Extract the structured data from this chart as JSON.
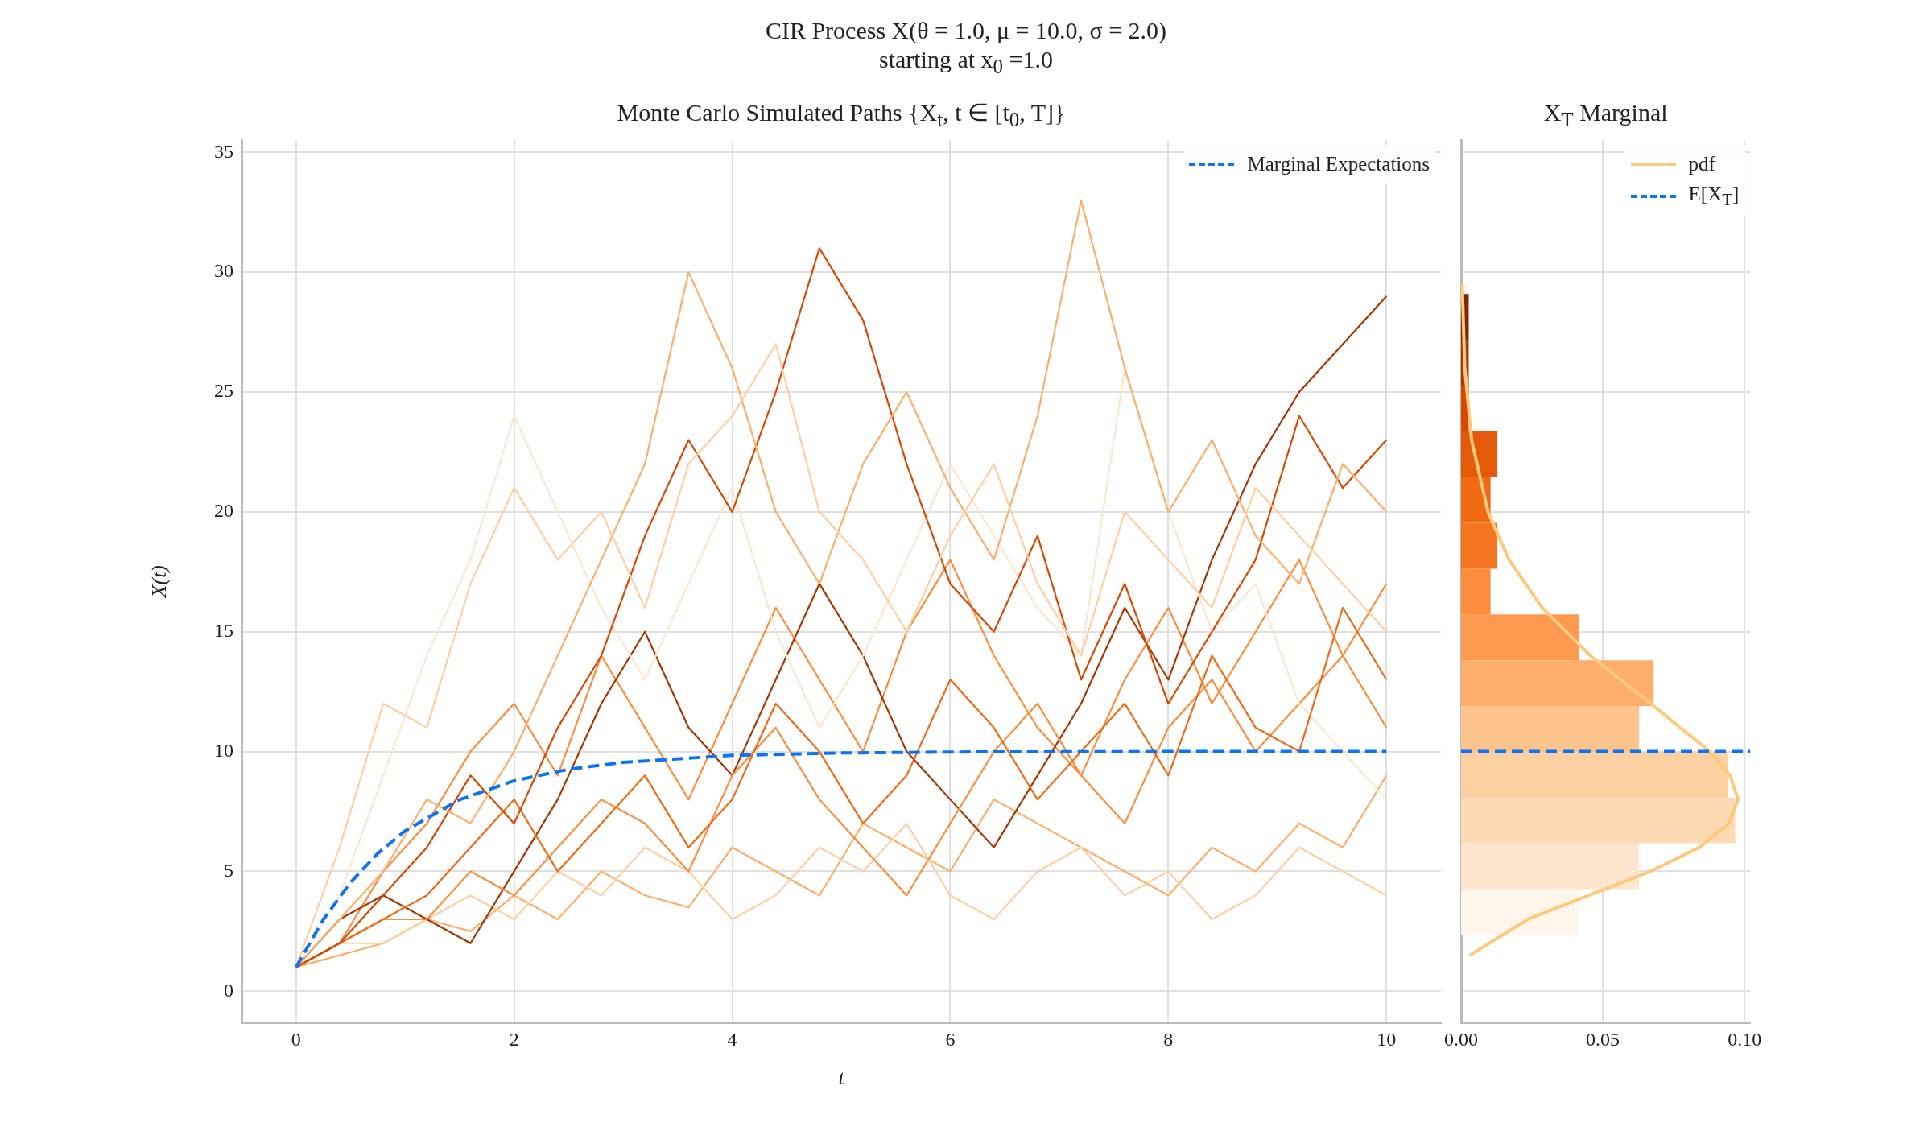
{
  "chart_data": [
    {
      "type": "line",
      "title": "CIR Process X(θ = 1.0, μ = 10.0, σ = 2.0)",
      "subtitle": "starting at x$_{0}$ =1.0",
      "annotations": [
        "Monte Carlo Simulated Paths {X$_{t}$, t ∈ [t$_{0}$, T]}"
      ],
      "xlabel": "t",
      "ylabel": "X(t)",
      "x": [
        0,
        0.4,
        0.8,
        1.2,
        1.6,
        2,
        2.4,
        2.8,
        3.2,
        3.6,
        4,
        4.4,
        4.8,
        5.2,
        5.6,
        6,
        6.4,
        6.8,
        7.2,
        7.6,
        8,
        8.4,
        8.8,
        9.2,
        9.6,
        10
      ],
      "series": [
        {
          "color": "#fdd0a2",
          "values": [
            1,
            6,
            12,
            11,
            17,
            21,
            18,
            20,
            16,
            22,
            24,
            27,
            20,
            18,
            15,
            19,
            22,
            17,
            14,
            20,
            18,
            16,
            21,
            19,
            17,
            15
          ]
        },
        {
          "color": "#fdae6b",
          "values": [
            1,
            3,
            5,
            8,
            7,
            10,
            14,
            18,
            22,
            30,
            26,
            20,
            17,
            22,
            25,
            21,
            18,
            24,
            33,
            26,
            20,
            23,
            19,
            17,
            22,
            20
          ]
        },
        {
          "color": "#d94801",
          "values": [
            1,
            2,
            4,
            6,
            9,
            7,
            11,
            14,
            19,
            23,
            20,
            25,
            31,
            28,
            22,
            17,
            15,
            19,
            13,
            17,
            12,
            15,
            18,
            24,
            21,
            23
          ]
        },
        {
          "color": "#f16913",
          "values": [
            1,
            2,
            3,
            4,
            6,
            8,
            5,
            7,
            9,
            6,
            8,
            12,
            10,
            7,
            9,
            13,
            11,
            8,
            10,
            12,
            9,
            14,
            11,
            10,
            16,
            13
          ]
        },
        {
          "color": "#fee6ce",
          "values": [
            1,
            4,
            9,
            14,
            18,
            24,
            20,
            16,
            13,
            17,
            21,
            15,
            11,
            14,
            18,
            22,
            19,
            16,
            14,
            26,
            20,
            15,
            17,
            12,
            10,
            8
          ]
        },
        {
          "color": "#fd8d3c",
          "values": [
            1,
            2,
            3,
            3,
            5,
            4,
            6,
            8,
            7,
            5,
            9,
            11,
            8,
            6,
            4,
            7,
            10,
            12,
            9,
            7,
            11,
            13,
            10,
            12,
            14,
            11
          ]
        },
        {
          "color": "#a63603",
          "values": [
            1,
            3,
            4,
            3,
            2,
            5,
            8,
            12,
            15,
            11,
            9,
            13,
            17,
            14,
            10,
            8,
            6,
            9,
            12,
            16,
            13,
            18,
            22,
            25,
            27,
            29
          ]
        },
        {
          "color": "#fdd0a2",
          "values": [
            1,
            2,
            2,
            3,
            4,
            3,
            5,
            4,
            6,
            5,
            3,
            4,
            6,
            5,
            7,
            4,
            3,
            5,
            6,
            4,
            5,
            3,
            4,
            6,
            5,
            4
          ]
        },
        {
          "color": "#fd8d3c",
          "values": [
            1,
            2,
            5,
            7,
            10,
            12,
            9,
            14,
            11,
            8,
            12,
            16,
            13,
            10,
            15,
            18,
            14,
            11,
            9,
            13,
            16,
            12,
            15,
            18,
            14,
            17
          ]
        },
        {
          "color": "#fdae6b",
          "values": [
            1,
            1.5,
            2,
            3,
            2.5,
            4,
            3,
            5,
            4,
            3.5,
            6,
            5,
            4,
            7,
            6,
            5,
            8,
            7,
            6,
            5,
            4,
            6,
            5,
            7,
            6,
            9
          ]
        },
        {
          "name": "Marginal Expectations",
          "color": "#0a74f5",
          "line_style": "dashed",
          "x": [
            0,
            0.25,
            0.5,
            0.75,
            1,
            1.5,
            2,
            2.5,
            3,
            4,
            5,
            6,
            8,
            10
          ],
          "values": [
            1,
            2.99,
            4.54,
            5.75,
            6.69,
            7.99,
            8.78,
            9.26,
            9.55,
            9.84,
            9.94,
            9.98,
            10,
            10
          ]
        }
      ],
      "xlim": [
        -0.5,
        10.5
      ],
      "xticks": [
        0,
        2,
        4,
        6,
        8,
        10
      ],
      "ylim": [
        -1.3,
        35.5
      ],
      "yticks": [
        0,
        5,
        10,
        15,
        20,
        25,
        30,
        35
      ],
      "grid": true,
      "legend": "top right",
      "marker": "none"
    },
    {
      "type": "histogram",
      "orientation": "horizontal",
      "title": "X$_{T}$ Marginal",
      "bins": [
        2.35,
        4.26,
        6.17,
        8.08,
        9.99,
        11.9,
        13.81,
        15.72,
        17.63,
        19.54,
        21.45,
        23.36,
        25.27,
        27.18,
        29.09
      ],
      "values": [
        0.0417,
        0.0628,
        0.0967,
        0.094,
        0.0628,
        0.0679,
        0.0417,
        0.0104,
        0.0128,
        0.0104,
        0.0128,
        0.0027,
        0.0027,
        0.0027
      ],
      "colors": [
        "#fff5eb",
        "#fee6ce",
        "#fdd9b4",
        "#fdd0a2",
        "#fdc38d",
        "#fdae6b",
        "#fd9a50",
        "#fd8d3c",
        "#f57622",
        "#f16913",
        "#e5590a",
        "#d94801",
        "#a63603",
        "#7f2704"
      ],
      "series": [
        {
          "type": "line",
          "name": "pdf",
          "color": "#fec97a",
          "x": [
            1.5,
            3,
            4,
            5,
            6,
            7,
            8,
            9,
            10,
            12,
            14,
            16,
            18,
            20,
            23,
            26,
            29.5
          ],
          "values": [
            0.0031,
            0.0235,
            0.0451,
            0.0668,
            0.084,
            0.0944,
            0.0977,
            0.0949,
            0.0877,
            0.0669,
            0.0456,
            0.0286,
            0.0169,
            0.0095,
            0.0037,
            0.0013,
            0.0004
          ]
        }
      ],
      "ref_lines": [
        {
          "axis": "y",
          "value": 10,
          "label": "E[X$_{T}$]",
          "color": "#0a74f5",
          "line_style": "dashed"
        }
      ],
      "xlim": [
        0,
        0.102
      ],
      "xticks": [
        {
          "value": 0,
          "label": "0.00"
        },
        {
          "value": 0.05,
          "label": "0.05"
        },
        {
          "value": 0.1,
          "label": "0.10"
        }
      ],
      "ylim": [
        -1.3,
        35.5
      ],
      "yticks": [
        0,
        5,
        10,
        15,
        20,
        25,
        30,
        35
      ],
      "tick_labels": "x",
      "grid": true,
      "legend": "top right",
      "marker": "none"
    }
  ]
}
